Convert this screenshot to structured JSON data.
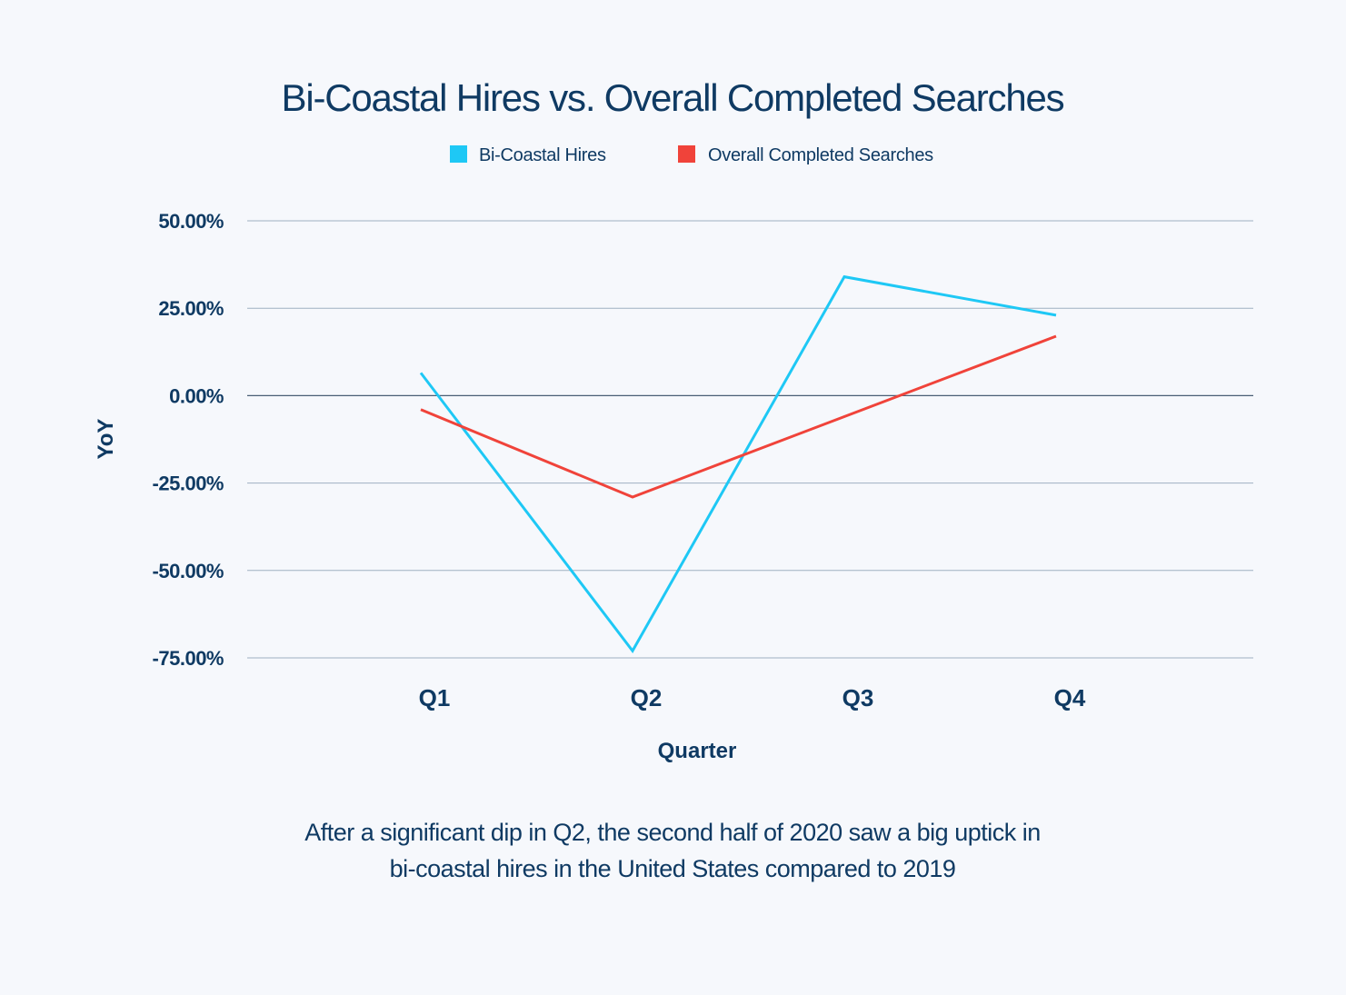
{
  "chart_data": {
    "type": "line",
    "title": "Bi-Coastal Hires vs. Overall Completed Searches",
    "xlabel": "Quarter",
    "ylabel": "YoY",
    "categories": [
      "Q1",
      "Q2",
      "Q3",
      "Q4"
    ],
    "y_ticks": [
      {
        "value": 50,
        "label": "50.00%"
      },
      {
        "value": 25,
        "label": "25.00%"
      },
      {
        "value": 0,
        "label": "0.00%"
      },
      {
        "value": -25,
        "label": "-25.00%"
      },
      {
        "value": -50,
        "label": "-50.00%"
      },
      {
        "value": -75,
        "label": "-75.00%"
      }
    ],
    "ylim": [
      -75,
      50
    ],
    "grid": true,
    "legend_position": "top-center",
    "series": [
      {
        "name": "Bi-Coastal Hires",
        "color": "#1ec8f5",
        "values": [
          6.5,
          -73,
          34,
          23
        ]
      },
      {
        "name": "Overall Completed Searches",
        "color": "#f0433a",
        "values": [
          -4,
          -29,
          -6,
          17
        ]
      }
    ]
  },
  "caption": {
    "line1": "After a significant dip in Q2, the second half of 2020 saw a big uptick in",
    "line2": "bi-coastal hires in the United States compared to 2019"
  }
}
